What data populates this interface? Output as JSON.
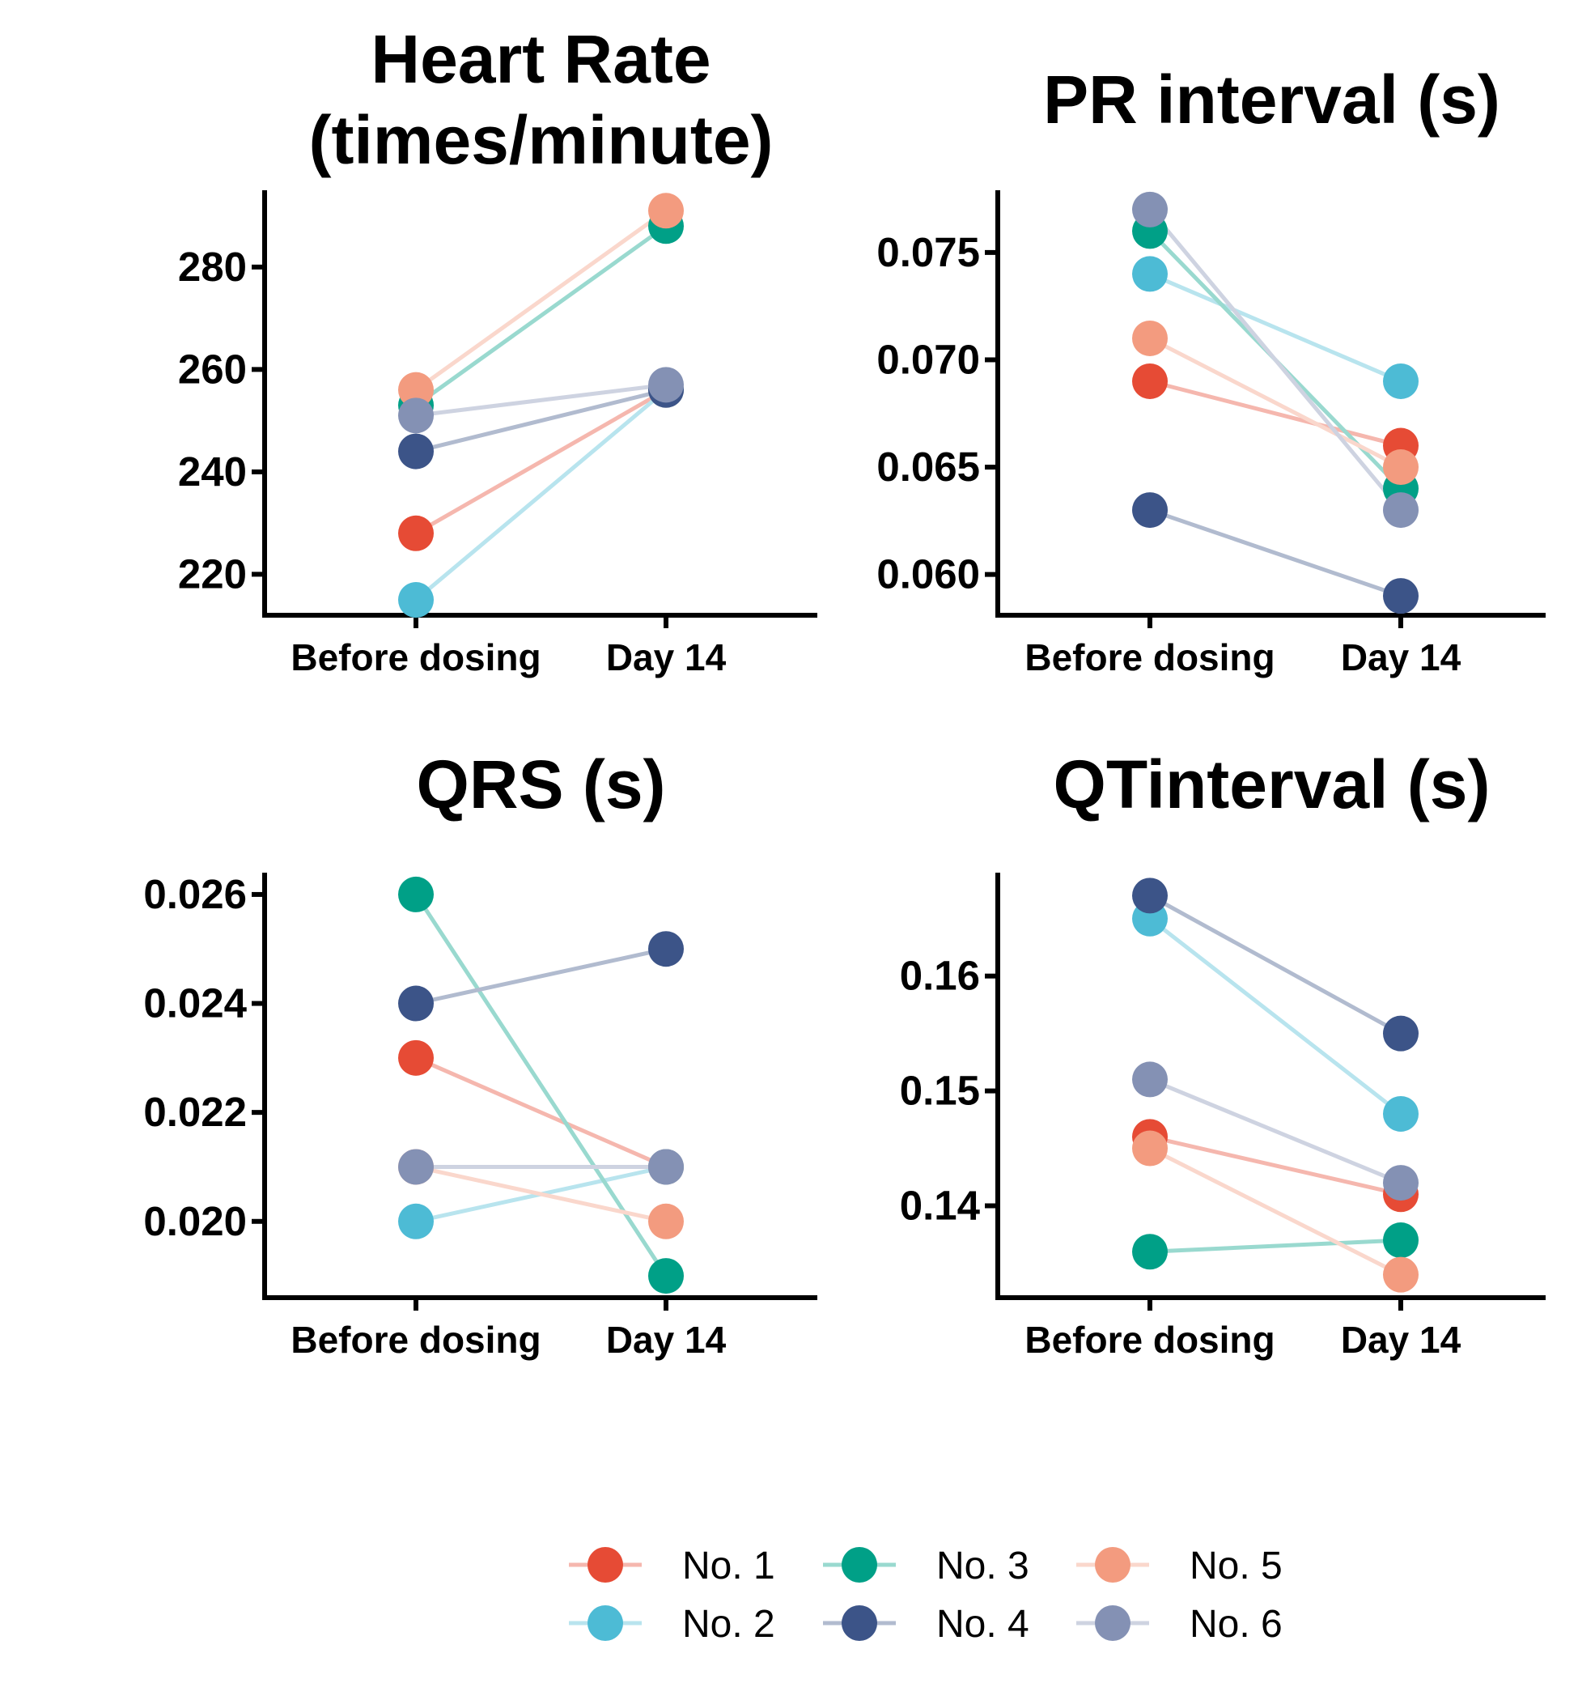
{
  "series_style": [
    {
      "name": "No. 1",
      "color": "#E64B35"
    },
    {
      "name": "No. 2",
      "color": "#4DBBD5"
    },
    {
      "name": "No. 3",
      "color": "#00A087"
    },
    {
      "name": "No. 4",
      "color": "#3C5488"
    },
    {
      "name": "No. 5",
      "color": "#F39B7F"
    },
    {
      "name": "No. 6",
      "color": "#8491B4"
    }
  ],
  "chart_data": [
    {
      "type": "line",
      "title_lines": [
        "Heart Rate",
        "(times/minute)"
      ],
      "categories": [
        "Before dosing",
        "Day 14"
      ],
      "ylim": [
        212,
        295
      ],
      "yticks": [
        220,
        240,
        260,
        280
      ],
      "ytick_labels": [
        "220",
        "240",
        "260",
        "280"
      ],
      "series": [
        {
          "name": "No. 1",
          "values": [
            228,
            256
          ]
        },
        {
          "name": "No. 2",
          "values": [
            215,
            256
          ]
        },
        {
          "name": "No. 3",
          "values": [
            253,
            288
          ]
        },
        {
          "name": "No. 4",
          "values": [
            244,
            256
          ]
        },
        {
          "name": "No. 5",
          "values": [
            256,
            291
          ]
        },
        {
          "name": "No. 6",
          "values": [
            251,
            257
          ]
        }
      ]
    },
    {
      "type": "line",
      "title_lines": [
        "PR interval (s)"
      ],
      "categories": [
        "Before dosing",
        "Day 14"
      ],
      "ylim": [
        0.0581,
        0.0779
      ],
      "yticks": [
        0.06,
        0.065,
        0.07,
        0.075
      ],
      "ytick_labels": [
        "0.060",
        "0.065",
        "0.070",
        "0.075"
      ],
      "series": [
        {
          "name": "No. 1",
          "values": [
            0.069,
            0.066
          ]
        },
        {
          "name": "No. 2",
          "values": [
            0.074,
            0.069
          ]
        },
        {
          "name": "No. 3",
          "values": [
            0.076,
            0.064
          ]
        },
        {
          "name": "No. 4",
          "values": [
            0.063,
            0.059
          ]
        },
        {
          "name": "No. 5",
          "values": [
            0.071,
            0.065
          ]
        },
        {
          "name": "No. 6",
          "values": [
            0.077,
            0.063
          ]
        }
      ]
    },
    {
      "type": "line",
      "title_lines": [
        "QRS (s)"
      ],
      "categories": [
        "Before dosing",
        "Day 14"
      ],
      "ylim": [
        0.0186,
        0.0264
      ],
      "yticks": [
        0.02,
        0.022,
        0.024,
        0.026
      ],
      "ytick_labels": [
        "0.020",
        "0.022",
        "0.024",
        "0.026"
      ],
      "series": [
        {
          "name": "No. 1",
          "values": [
            0.023,
            0.021
          ]
        },
        {
          "name": "No. 2",
          "values": [
            0.02,
            0.021
          ]
        },
        {
          "name": "No. 3",
          "values": [
            0.026,
            0.019
          ]
        },
        {
          "name": "No. 4",
          "values": [
            0.024,
            0.025
          ]
        },
        {
          "name": "No. 5",
          "values": [
            0.021,
            0.02
          ]
        },
        {
          "name": "No. 6",
          "values": [
            0.021,
            0.021
          ]
        }
      ]
    },
    {
      "type": "line",
      "title_lines": [
        "QTinterval (s)"
      ],
      "categories": [
        "Before dosing",
        "Day 14"
      ],
      "ylim": [
        0.132,
        0.169
      ],
      "yticks": [
        0.14,
        0.15,
        0.16
      ],
      "ytick_labels": [
        "0.14",
        "0.15",
        "0.16"
      ],
      "series": [
        {
          "name": "No. 1",
          "values": [
            0.146,
            0.141
          ]
        },
        {
          "name": "No. 2",
          "values": [
            0.165,
            0.148
          ]
        },
        {
          "name": "No. 3",
          "values": [
            0.136,
            0.137
          ]
        },
        {
          "name": "No. 4",
          "values": [
            0.167,
            0.155
          ]
        },
        {
          "name": "No. 5",
          "values": [
            0.145,
            0.134
          ]
        },
        {
          "name": "No. 6",
          "values": [
            0.151,
            0.142
          ]
        }
      ]
    }
  ]
}
